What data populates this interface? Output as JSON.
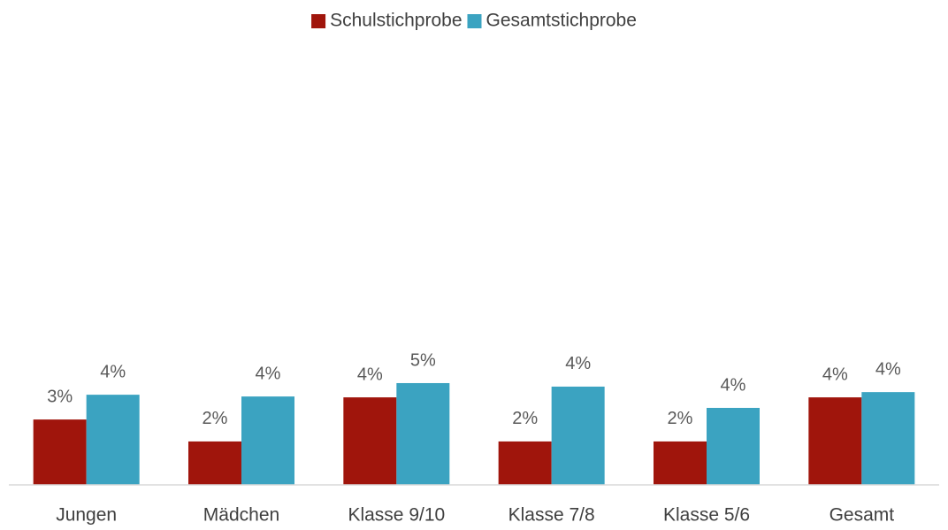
{
  "chart_data": {
    "type": "bar",
    "categories": [
      "Jungen",
      "Mädchen",
      "Klasse 9/10",
      "Klasse 7/8",
      "Klasse 5/6",
      "Gesamt"
    ],
    "series": [
      {
        "name": "Schulstichprobe",
        "color": "#a0150c",
        "values": [
          2.98,
          1.98,
          3.99,
          1.98,
          1.98,
          3.99
        ],
        "value_labels": [
          "3%",
          "2%",
          "4%",
          "2%",
          "2%",
          "4%"
        ]
      },
      {
        "name": "Gesamtstichprobe",
        "color": "#3ba3c1",
        "values": [
          4.11,
          4.03,
          4.64,
          4.48,
          3.51,
          4.23
        ],
        "value_labels": [
          "4%",
          "4%",
          "5%",
          "4%",
          "4%",
          "4%"
        ]
      }
    ],
    "ylim": [
      0,
      19
    ],
    "grid": false,
    "legend": "top"
  }
}
